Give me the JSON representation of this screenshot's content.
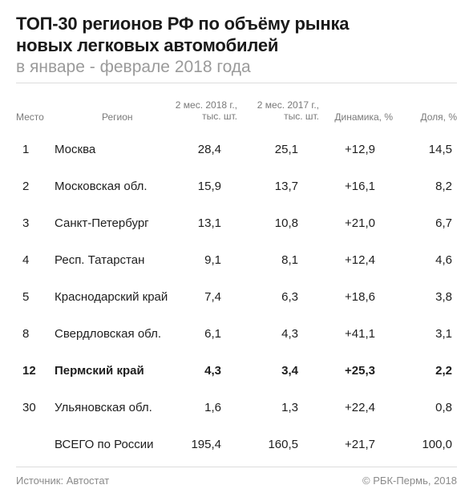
{
  "title_line1": "ТОП-30 регионов РФ по объёму рынка",
  "title_line2": "новых легковых автомобилей",
  "subtitle": "в январе - феврале 2018 года",
  "headers": {
    "place": "Место",
    "region": "Регион",
    "y2018_line1": "2 мес. 2018 г.,",
    "y2018_line2": "тыс. шт.",
    "y2017_line1": "2 мес. 2017 г.,",
    "y2017_line2": "тыс. шт.",
    "dynamics": "Динамика, %",
    "share": "Доля, %"
  },
  "rows": [
    {
      "place": "1",
      "region": "Москва",
      "y2018": "28,4",
      "y2017": "25,1",
      "dynamics": "+12,9",
      "share": "14,5"
    },
    {
      "place": "2",
      "region": "Московская обл.",
      "y2018": "15,9",
      "y2017": "13,7",
      "dynamics": "+16,1",
      "share": "8,2"
    },
    {
      "place": "3",
      "region": "Санкт-Петербург",
      "y2018": "13,1",
      "y2017": "10,8",
      "dynamics": "+21,0",
      "share": "6,7"
    },
    {
      "place": "4",
      "region": "Респ. Татарстан",
      "y2018": "9,1",
      "y2017": "8,1",
      "dynamics": "+12,4",
      "share": "4,6"
    },
    {
      "place": "5",
      "region": "Краснодарский край",
      "y2018": "7,4",
      "y2017": "6,3",
      "dynamics": "+18,6",
      "share": "3,8"
    },
    {
      "place": "8",
      "region": "Свердловская обл.",
      "y2018": "6,1",
      "y2017": "4,3",
      "dynamics": "+41,1",
      "share": "3,1"
    },
    {
      "place": "12",
      "region": "Пермский край",
      "y2018": "4,3",
      "y2017": "3,4",
      "dynamics": "+25,3",
      "share": "2,2"
    },
    {
      "place": "30",
      "region": "Ульяновская обл.",
      "y2018": "1,6",
      "y2017": "1,3",
      "dynamics": "+22,4",
      "share": "0,8"
    },
    {
      "place": "",
      "region": "ВСЕГО по России",
      "y2018": "195,4",
      "y2017": "160,5",
      "dynamics": "+21,7",
      "share": "100,0"
    }
  ],
  "footer": {
    "source": "Источник: Автостат",
    "copyright": "© РБК-Пермь, 2018"
  }
}
